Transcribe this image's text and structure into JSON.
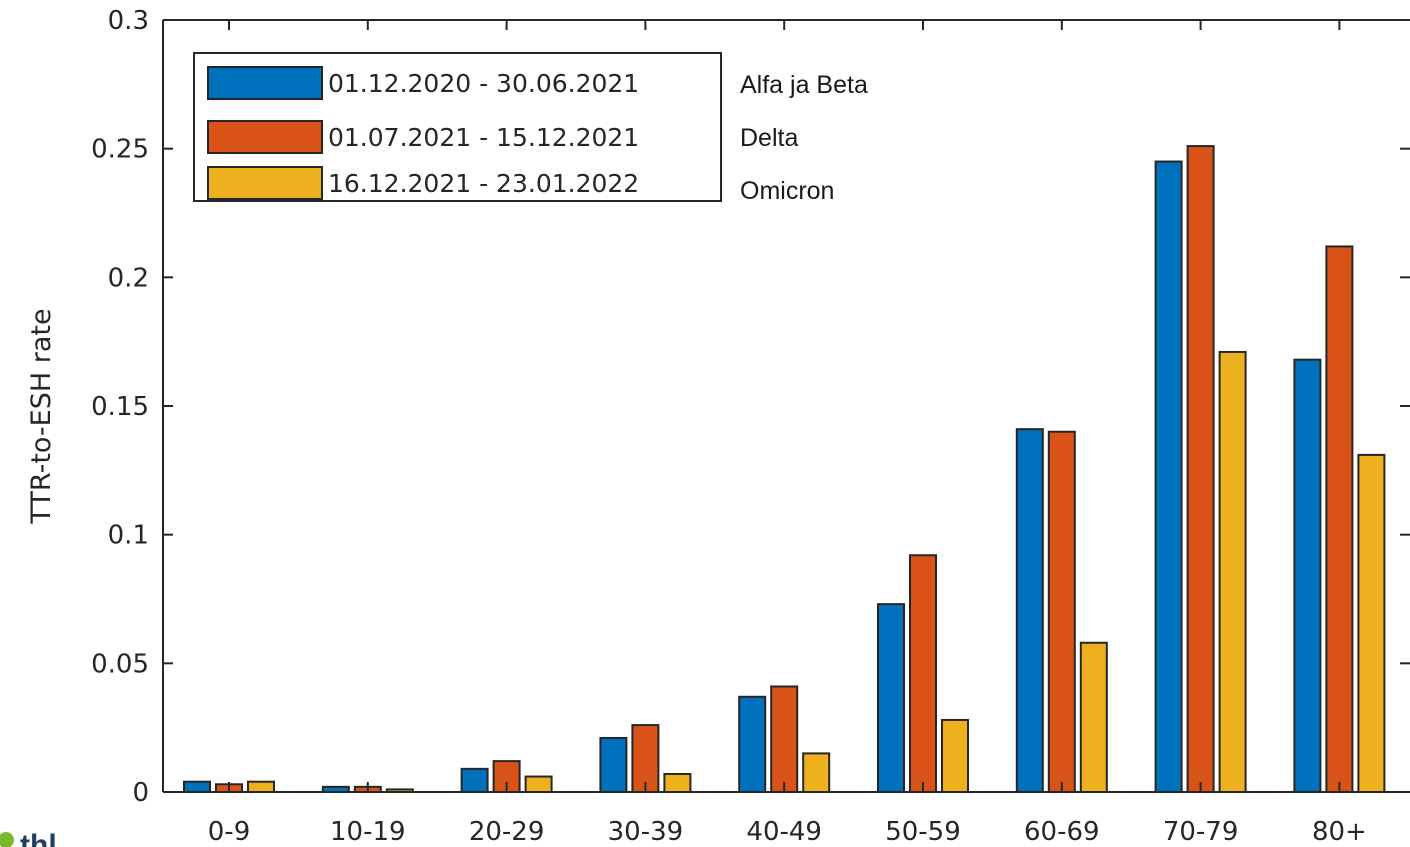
{
  "chart_data": {
    "type": "bar",
    "title": "",
    "xlabel": "",
    "ylabel": "TTR-to-ESH rate",
    "ylim": [
      0,
      0.3
    ],
    "yticks": [
      "0",
      "0.05",
      "0.1",
      "0.15",
      "0.2",
      "0.25",
      "0.3"
    ],
    "categories": [
      "0-9",
      "10-19",
      "20-29",
      "30-39",
      "40-49",
      "50-59",
      "60-69",
      "70-79",
      "80+"
    ],
    "series": [
      {
        "name": "01.12.2020 - 30.06.2021",
        "label": "Alfa ja Beta",
        "color": "#0072BD",
        "values": [
          0.004,
          0.002,
          0.009,
          0.021,
          0.037,
          0.073,
          0.141,
          0.245,
          0.168
        ]
      },
      {
        "name": "01.07.2021 - 15.12.2021",
        "label": "Delta",
        "color": "#D95319",
        "values": [
          0.003,
          0.002,
          0.012,
          0.026,
          0.041,
          0.092,
          0.14,
          0.251,
          0.212
        ]
      },
      {
        "name": "16.12.2021 - 23.01.2022",
        "label": "Omicron",
        "color": "#EDB120",
        "values": [
          0.004,
          0.001,
          0.006,
          0.007,
          0.015,
          0.028,
          0.058,
          0.171,
          0.131
        ]
      }
    ],
    "grid": false,
    "legend_position": "top-left"
  },
  "logo": {
    "text": "thl",
    "dot_color": "#7ab929"
  }
}
